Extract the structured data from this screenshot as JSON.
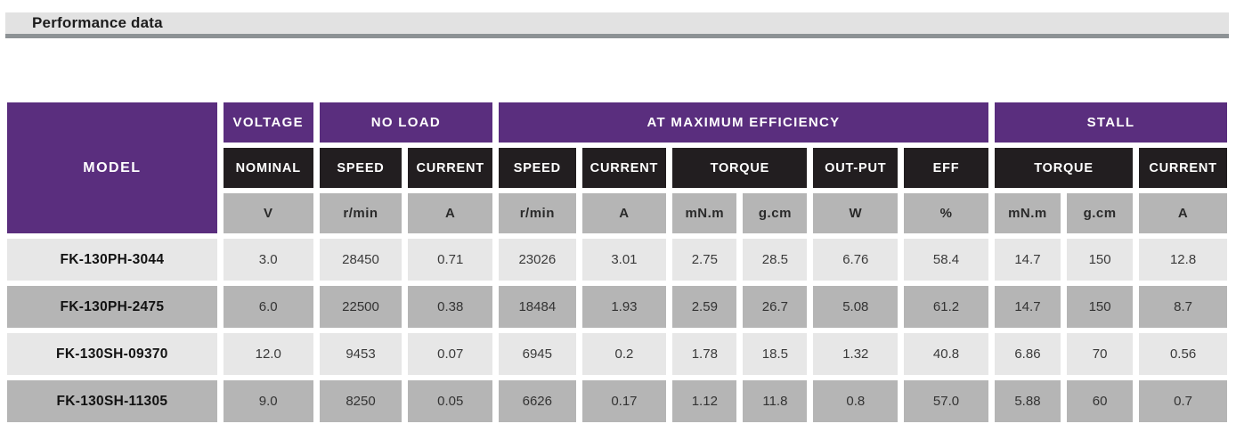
{
  "page_title": "Performance data",
  "colors": {
    "header_purple": "#5a2e7e",
    "header_black": "#221e20",
    "unit_row_gray": "#b5b5b5",
    "row_light": "#e7e7e7",
    "row_dark": "#b5b5b5",
    "title_bar_bg": "#e2e2e2",
    "title_bar_border": "#8d9295"
  },
  "table": {
    "model_header": "MODEL",
    "groups": [
      {
        "label": "VOLTAGE"
      },
      {
        "label": "NO LOAD"
      },
      {
        "label": "AT MAXIMUM EFFICIENCY"
      },
      {
        "label": "STALL"
      }
    ],
    "subheaders": [
      {
        "label": "NOMINAL"
      },
      {
        "label": "SPEED"
      },
      {
        "label": "CURRENT"
      },
      {
        "label": "SPEED"
      },
      {
        "label": "CURRENT"
      },
      {
        "label": "TORQUE"
      },
      {
        "label": "OUT-PUT"
      },
      {
        "label": "EFF"
      },
      {
        "label": "TORQUE"
      },
      {
        "label": "CURRENT"
      }
    ],
    "units": [
      "V",
      "r/min",
      "A",
      "r/min",
      "A",
      "mN.m",
      "g.cm",
      "W",
      "%",
      "mN.m",
      "g.cm",
      "A"
    ],
    "rows": [
      {
        "model": "FK-130PH-3044",
        "values": [
          "3.0",
          "28450",
          "0.71",
          "23026",
          "3.01",
          "2.75",
          "28.5",
          "6.76",
          "58.4",
          "14.7",
          "150",
          "12.8"
        ]
      },
      {
        "model": "FK-130PH-2475",
        "values": [
          "6.0",
          "22500",
          "0.38",
          "18484",
          "1.93",
          "2.59",
          "26.7",
          "5.08",
          "61.2",
          "14.7",
          "150",
          "8.7"
        ]
      },
      {
        "model": "FK-130SH-09370",
        "values": [
          "12.0",
          "9453",
          "0.07",
          "6945",
          "0.2",
          "1.78",
          "18.5",
          "1.32",
          "40.8",
          "6.86",
          "70",
          "0.56"
        ]
      },
      {
        "model": "FK-130SH-11305",
        "values": [
          "9.0",
          "8250",
          "0.05",
          "6626",
          "0.17",
          "1.12",
          "11.8",
          "0.8",
          "57.0",
          "5.88",
          "60",
          "0.7"
        ]
      }
    ]
  }
}
